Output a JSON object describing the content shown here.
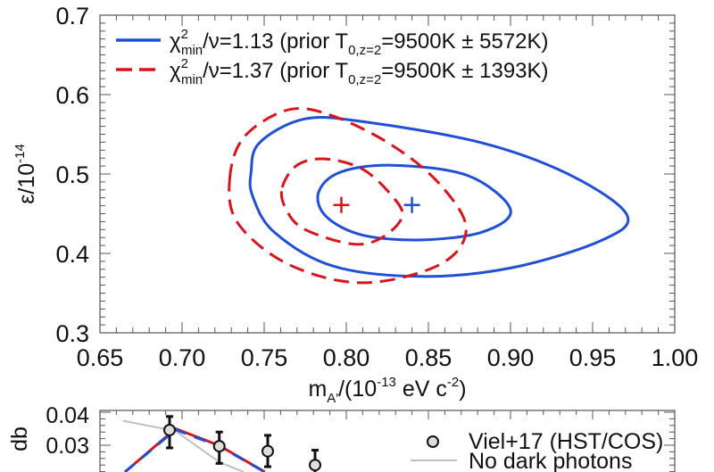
{
  "chart_data": [
    {
      "type": "contour",
      "xlabel": {
        "main": "m",
        "sub": "A′",
        "mid": "/(10",
        "sup1": "-13",
        "mid2": " eV c",
        "sup2": "-2",
        "end": ")"
      },
      "ylabel": {
        "main": "ε/10",
        "sup": "-14"
      },
      "xlim": [
        0.65,
        1.0
      ],
      "ylim": [
        0.3,
        0.7
      ],
      "xticks": [
        "0.65",
        "0.70",
        "0.75",
        "0.80",
        "0.85",
        "0.90",
        "0.95",
        "1.00"
      ],
      "yticks": [
        "0.3",
        "0.4",
        "0.5",
        "0.6",
        "0.7"
      ],
      "grid": false,
      "legend_placement": "top-left",
      "series": [
        {
          "legend": {
            "chi": "χ",
            "sup": "2",
            "sub": "min",
            "text1": "/ν=1.13 (prior T",
            "sub2": "0,z=2",
            "text2": "=9500K ± 5572K)"
          },
          "color": "#1f4fd6",
          "style": "solid",
          "best_fit": [
            0.84,
            0.461
          ],
          "contours": [
            [
              [
                0.783,
                0.476
              ],
              [
                0.796,
                0.502
              ],
              [
                0.828,
                0.511
              ],
              [
                0.874,
                0.498
              ],
              [
                0.9,
                0.455
              ],
              [
                0.883,
                0.427
              ],
              [
                0.846,
                0.417
              ],
              [
                0.81,
                0.423
              ],
              [
                0.788,
                0.446
              ]
            ],
            [
              [
                0.742,
                0.502
              ],
              [
                0.747,
                0.539
              ],
              [
                0.774,
                0.569
              ],
              [
                0.81,
                0.566
              ],
              [
                0.883,
                0.539
              ],
              [
                0.937,
                0.498
              ],
              [
                0.971,
                0.448
              ],
              [
                0.955,
                0.416
              ],
              [
                0.901,
                0.382
              ],
              [
                0.846,
                0.371
              ],
              [
                0.792,
                0.384
              ],
              [
                0.756,
                0.427
              ],
              [
                0.743,
                0.472
              ]
            ]
          ]
        },
        {
          "legend": {
            "chi": "χ",
            "sup": "2",
            "sub": "min",
            "text1": "/ν=1.37 (prior T",
            "sub2": "0,z=2",
            "text2": "=9500K ± 1393K)"
          },
          "color": "#d9141c",
          "style": "dashed",
          "best_fit": [
            0.797,
            0.461
          ],
          "contours": [
            [
              [
                0.761,
                0.483
              ],
              [
                0.77,
                0.511
              ],
              [
                0.787,
                0.519
              ],
              [
                0.81,
                0.506
              ],
              [
                0.828,
                0.472
              ],
              [
                0.834,
                0.446
              ],
              [
                0.821,
                0.419
              ],
              [
                0.803,
                0.412
              ],
              [
                0.774,
                0.431
              ],
              [
                0.763,
                0.457
              ]
            ],
            [
              [
                0.729,
                0.494
              ],
              [
                0.738,
                0.547
              ],
              [
                0.765,
                0.581
              ],
              [
                0.792,
                0.573
              ],
              [
                0.828,
                0.536
              ],
              [
                0.857,
                0.487
              ],
              [
                0.873,
                0.431
              ],
              [
                0.857,
                0.386
              ],
              [
                0.81,
                0.363
              ],
              [
                0.765,
                0.386
              ],
              [
                0.734,
                0.438
              ]
            ]
          ]
        }
      ]
    },
    {
      "type": "scatter",
      "partial": true,
      "ylabel": "db",
      "yticks": [
        "0.04",
        "0.03"
      ],
      "legend_placement": "top-right",
      "observations": {
        "name": "Viel+17 (HST/COS)",
        "y": [
          0.0346,
          0.0297,
          0.0282,
          0.024
        ],
        "yerr_low": [
          0.0292,
          0.0245,
          0.0235,
          null
        ],
        "yerr_high": [
          0.0387,
          0.034,
          0.033,
          0.0285
        ]
      },
      "no_dark_photons": {
        "name": "No dark photons",
        "color": "#c0c0c0",
        "y": [
          0.0374,
          0.0343,
          0.0249,
          0.0219
        ]
      },
      "model_blue": {
        "color": "#1f4fd6",
        "y": [
          0.0219,
          0.0347,
          0.0297,
          0.0219
        ]
      },
      "model_red": {
        "color": "#d9141c",
        "y": [
          0.0219,
          0.035,
          0.0299,
          0.0219
        ]
      }
    }
  ]
}
